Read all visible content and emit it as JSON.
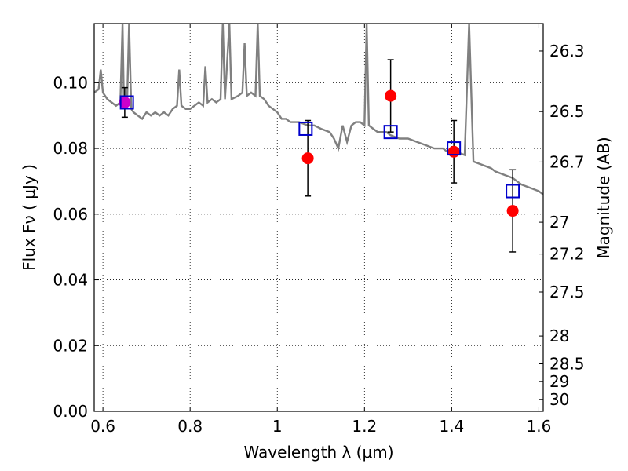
{
  "chart_data": {
    "type": "scatter",
    "xlabel": "Wavelength  λ (μm)",
    "ylabel": "Flux  Fν ( μJy )",
    "ylabel_right": "Magnitude (AB)",
    "xlim": [
      0.58,
      1.61
    ],
    "ylim": [
      0.0,
      0.118
    ],
    "grid": true,
    "x_ticks": [
      {
        "value": 0.6,
        "label": "0.6"
      },
      {
        "value": 0.8,
        "label": "0.8"
      },
      {
        "value": 1.0,
        "label": "1"
      },
      {
        "value": 1.2,
        "label": "1.2"
      },
      {
        "value": 1.4,
        "label": "1.4"
      },
      {
        "value": 1.6,
        "label": "1.6"
      }
    ],
    "y_ticks": [
      {
        "value": 0.0,
        "label": "0.00"
      },
      {
        "value": 0.02,
        "label": "0.02"
      },
      {
        "value": 0.04,
        "label": "0.04"
      },
      {
        "value": 0.06,
        "label": "0.06"
      },
      {
        "value": 0.08,
        "label": "0.08"
      },
      {
        "value": 0.1,
        "label": "0.10"
      }
    ],
    "right_ticks": [
      {
        "mag": 26.3,
        "label": "26.3"
      },
      {
        "mag": 26.5,
        "label": "26.5"
      },
      {
        "mag": 26.7,
        "label": "26.7"
      },
      {
        "mag": 27.0,
        "label": "27"
      },
      {
        "mag": 27.2,
        "label": "27.2"
      },
      {
        "mag": 27.5,
        "label": "27.5"
      },
      {
        "mag": 28.0,
        "label": "28"
      },
      {
        "mag": 28.5,
        "label": "28.5"
      },
      {
        "mag": 29.0,
        "label": "29"
      },
      {
        "mag": 30.0,
        "label": "30"
      }
    ],
    "model_spectrum": {
      "color": "#808080",
      "points": [
        [
          0.58,
          0.097
        ],
        [
          0.59,
          0.098
        ],
        [
          0.595,
          0.104
        ],
        [
          0.6,
          0.097
        ],
        [
          0.61,
          0.095
        ],
        [
          0.62,
          0.094
        ],
        [
          0.63,
          0.093
        ],
        [
          0.64,
          0.094
        ],
        [
          0.645,
          0.118
        ],
        [
          0.648,
          0.094
        ],
        [
          0.655,
          0.092
        ],
        [
          0.66,
          0.118
        ],
        [
          0.665,
          0.092
        ],
        [
          0.67,
          0.091
        ],
        [
          0.68,
          0.09
        ],
        [
          0.69,
          0.089
        ],
        [
          0.7,
          0.091
        ],
        [
          0.71,
          0.09
        ],
        [
          0.72,
          0.091
        ],
        [
          0.73,
          0.09
        ],
        [
          0.74,
          0.091
        ],
        [
          0.75,
          0.09
        ],
        [
          0.76,
          0.092
        ],
        [
          0.77,
          0.093
        ],
        [
          0.775,
          0.104
        ],
        [
          0.78,
          0.093
        ],
        [
          0.79,
          0.092
        ],
        [
          0.8,
          0.092
        ],
        [
          0.81,
          0.093
        ],
        [
          0.82,
          0.094
        ],
        [
          0.83,
          0.093
        ],
        [
          0.835,
          0.105
        ],
        [
          0.84,
          0.094
        ],
        [
          0.85,
          0.095
        ],
        [
          0.86,
          0.094
        ],
        [
          0.87,
          0.095
        ],
        [
          0.875,
          0.118
        ],
        [
          0.88,
          0.095
        ],
        [
          0.89,
          0.118
        ],
        [
          0.895,
          0.095
        ],
        [
          0.91,
          0.096
        ],
        [
          0.92,
          0.097
        ],
        [
          0.925,
          0.112
        ],
        [
          0.93,
          0.096
        ],
        [
          0.94,
          0.097
        ],
        [
          0.95,
          0.096
        ],
        [
          0.955,
          0.118
        ],
        [
          0.96,
          0.096
        ],
        [
          0.97,
          0.095
        ],
        [
          0.98,
          0.093
        ],
        [
          0.99,
          0.092
        ],
        [
          1.0,
          0.091
        ],
        [
          1.01,
          0.089
        ],
        [
          1.02,
          0.089
        ],
        [
          1.03,
          0.088
        ],
        [
          1.05,
          0.088
        ],
        [
          1.07,
          0.087
        ],
        [
          1.085,
          0.087
        ],
        [
          1.1,
          0.086
        ],
        [
          1.12,
          0.085
        ],
        [
          1.13,
          0.083
        ],
        [
          1.14,
          0.08
        ],
        [
          1.15,
          0.087
        ],
        [
          1.16,
          0.082
        ],
        [
          1.17,
          0.087
        ],
        [
          1.18,
          0.088
        ],
        [
          1.19,
          0.088
        ],
        [
          1.2,
          0.087
        ],
        [
          1.205,
          0.118
        ],
        [
          1.21,
          0.087
        ],
        [
          1.22,
          0.086
        ],
        [
          1.23,
          0.085
        ],
        [
          1.24,
          0.085
        ],
        [
          1.25,
          0.085
        ],
        [
          1.26,
          0.084
        ],
        [
          1.28,
          0.083
        ],
        [
          1.3,
          0.083
        ],
        [
          1.32,
          0.082
        ],
        [
          1.34,
          0.081
        ],
        [
          1.36,
          0.08
        ],
        [
          1.38,
          0.08
        ],
        [
          1.39,
          0.079
        ],
        [
          1.4,
          0.079
        ],
        [
          1.41,
          0.079
        ],
        [
          1.43,
          0.078
        ],
        [
          1.44,
          0.118
        ],
        [
          1.45,
          0.076
        ],
        [
          1.47,
          0.075
        ],
        [
          1.49,
          0.074
        ],
        [
          1.5,
          0.073
        ],
        [
          1.52,
          0.072
        ],
        [
          1.54,
          0.071
        ],
        [
          1.56,
          0.069
        ],
        [
          1.58,
          0.068
        ],
        [
          1.6,
          0.067
        ],
        [
          1.61,
          0.066
        ]
      ]
    },
    "observed": {
      "color": "#ff0000",
      "points": [
        {
          "x": 1.07,
          "y": 0.077,
          "err": 0.0115
        },
        {
          "x": 1.26,
          "y": 0.096,
          "err": 0.011
        },
        {
          "x": 1.405,
          "y": 0.079,
          "err": 0.0095
        },
        {
          "x": 1.54,
          "y": 0.061,
          "err": 0.0125
        }
      ]
    },
    "observed_optical": {
      "color": "#cc00cc",
      "points": [
        {
          "x": 0.65,
          "y": 0.094,
          "err": 0.0045
        }
      ]
    },
    "model_bands": {
      "color": "#0000cc",
      "points": [
        {
          "x": 0.655,
          "y": 0.094
        },
        {
          "x": 1.065,
          "y": 0.086
        },
        {
          "x": 1.26,
          "y": 0.085
        },
        {
          "x": 1.405,
          "y": 0.08
        },
        {
          "x": 1.54,
          "y": 0.067
        }
      ]
    }
  }
}
